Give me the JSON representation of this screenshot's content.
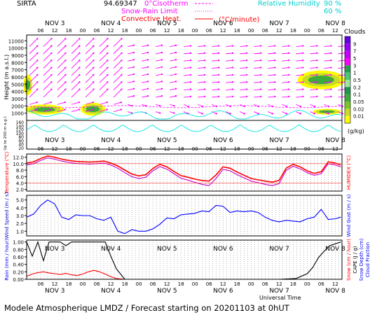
{
  "header": {
    "station": "SIRTA",
    "coords": "94.69347",
    "legend_isotherm": "0°Cisotherm",
    "legend_snow_rain": "Snow-Rain Limit",
    "legend_convective": "Convective Heat.",
    "legend_convective_unit": "(°C/minute)",
    "legend_rh": "Relative Humidity",
    "rh_90": "90 %",
    "rh_60": "60 %"
  },
  "day_labels": [
    "NOV 3",
    "NOV 4",
    "NOV 5",
    "NOV 6",
    "NOV 7",
    "NOV 8"
  ],
  "hour_labels": [
    "06",
    "12",
    "18",
    "00"
  ],
  "footer": {
    "title": "Modele Atmospherique LMDZ / Forecast starting on 20201103 at 0hUT",
    "xaxis": "Universal Time"
  },
  "colors": {
    "cloud_scale": [
      "#ffff00",
      "#c8dc28",
      "#78c828",
      "#3caa3c",
      "#1e9650",
      "#a0e6a0",
      "#50c878",
      "#28a050",
      "#ff00ff",
      "#c800ff",
      "#9600ff",
      "#6400e6"
    ],
    "temperature": "#ff0000",
    "humidex": "#c800c8",
    "wind": "#0000ff",
    "wind_axis": "#0000cc",
    "rain": "#ff0000",
    "snow": "#0000ff",
    "cloud_frac": "#000000",
    "rh_contour": "#00e6e6",
    "wind_arrows": "#ff00ff"
  },
  "chart_data": [
    {
      "type": "heatmap",
      "panel": "clouds",
      "ylabel": "Height (m a.s.l.)",
      "ylabel2": "Up to 200 m a.g.l.",
      "yticks_upper": [
        11000,
        10000,
        9000,
        8000,
        7000,
        6000,
        5000,
        4000,
        3000,
        2000,
        1000
      ],
      "yticks_lower": [
        160,
        140,
        120,
        100,
        80,
        60,
        40,
        20
      ],
      "colorbar_title": "Clouds",
      "colorbar_labels": [
        "9",
        "7",
        "5",
        "3",
        "1",
        "0.5",
        "0.2",
        "0.1",
        "0.05",
        "0.02",
        "0.01"
      ],
      "colorbar_unit": "(g/kg)",
      "cloud_patches": [
        {
          "day": 3.05,
          "height_m": 5000,
          "level": "high"
        },
        {
          "day": 3.3,
          "height_m": 1500,
          "level": "high"
        },
        {
          "day": 4.2,
          "height_m": 1600,
          "level": "high"
        },
        {
          "day": 8.2,
          "height_m": 5500,
          "level": "high"
        }
      ]
    },
    {
      "type": "line",
      "panel": "temperature",
      "ylabel": "Temperature (°C)",
      "ylabel2": "HUMIDEX (°C)",
      "yticks": [
        12.0,
        10.0,
        8.0,
        6.0,
        4.0,
        2.0
      ],
      "ylim": [
        1.5,
        13
      ],
      "series": [
        {
          "name": "Temperature",
          "x": [
            3.0,
            3.125,
            3.25,
            3.375,
            3.5,
            3.625,
            3.75,
            3.875,
            4.0,
            4.125,
            4.25,
            4.375,
            4.5,
            4.625,
            4.75,
            4.875,
            5.0,
            5.125,
            5.25,
            5.375,
            5.5,
            5.625,
            5.75,
            5.875,
            6.0,
            6.125,
            6.25,
            6.375,
            6.5,
            6.625,
            6.75,
            6.875,
            7.0,
            7.125,
            7.25,
            7.375,
            7.5,
            7.625,
            7.75,
            7.875,
            8.0,
            8.125,
            8.25,
            8.375,
            8.5,
            8.6
          ],
          "values": [
            10.2,
            10.6,
            11.6,
            12.4,
            12.0,
            11.4,
            11.0,
            10.7,
            10.6,
            10.5,
            10.6,
            10.8,
            10.2,
            9.3,
            8.0,
            6.8,
            6.2,
            6.6,
            8.5,
            9.8,
            9.0,
            7.6,
            6.3,
            5.8,
            5.2,
            4.8,
            4.6,
            6.5,
            9.0,
            8.6,
            7.4,
            6.4,
            5.4,
            5.0,
            4.6,
            4.3,
            4.8,
            8.6,
            9.8,
            9.0,
            7.8,
            7.0,
            7.5,
            10.6,
            10.2,
            9.6
          ]
        },
        {
          "name": "Humidex",
          "x": [
            3.0,
            3.125,
            3.25,
            3.375,
            3.5,
            3.625,
            3.75,
            3.875,
            4.0,
            4.125,
            4.25,
            4.375,
            4.5,
            4.625,
            4.75,
            4.875,
            5.0,
            5.125,
            5.25,
            5.375,
            5.5,
            5.625,
            5.75,
            5.875,
            6.0,
            6.125,
            6.25,
            6.375,
            6.5,
            6.625,
            6.75,
            6.875,
            7.0,
            7.125,
            7.25,
            7.375,
            7.5,
            7.625,
            7.75,
            7.875,
            8.0,
            8.125,
            8.25,
            8.375,
            8.5,
            8.6
          ],
          "values": [
            9.6,
            10.0,
            11.0,
            11.8,
            11.4,
            10.8,
            10.4,
            10.1,
            10.0,
            9.9,
            10.0,
            10.2,
            9.6,
            8.6,
            7.2,
            6.0,
            5.4,
            5.8,
            7.8,
            9.1,
            8.3,
            6.9,
            5.5,
            4.9,
            4.2,
            3.6,
            3.2,
            5.4,
            8.2,
            7.8,
            6.6,
            5.6,
            4.6,
            4.1,
            3.6,
            3.2,
            3.8,
            7.9,
            9.2,
            8.4,
            7.2,
            6.4,
            6.9,
            10.0,
            9.6,
            9.0
          ]
        }
      ]
    },
    {
      "type": "line",
      "panel": "wind",
      "ylabel": "Wind Speed (m / s)",
      "ylabel2": "Wind Gust (m / s)",
      "yticks": [
        5.0,
        4.0,
        3.0,
        2.0,
        1.0
      ],
      "ylim": [
        0.4,
        5.6
      ],
      "series": [
        {
          "name": "Wind Speed",
          "x": [
            3.0,
            3.125,
            3.25,
            3.375,
            3.5,
            3.625,
            3.75,
            3.875,
            4.0,
            4.125,
            4.25,
            4.375,
            4.5,
            4.625,
            4.75,
            4.875,
            5.0,
            5.125,
            5.25,
            5.375,
            5.5,
            5.625,
            5.75,
            5.875,
            6.0,
            6.125,
            6.25,
            6.375,
            6.5,
            6.625,
            6.75,
            6.875,
            7.0,
            7.125,
            7.25,
            7.375,
            7.5,
            7.625,
            7.75,
            7.875,
            8.0,
            8.125,
            8.25,
            8.375,
            8.5,
            8.6
          ],
          "values": [
            2.8,
            3.2,
            4.3,
            5.0,
            4.5,
            2.8,
            2.5,
            3.1,
            3.0,
            3.0,
            2.6,
            2.4,
            2.8,
            1.0,
            0.7,
            1.2,
            1.0,
            1.0,
            1.3,
            1.9,
            2.7,
            2.6,
            3.1,
            3.2,
            3.3,
            3.6,
            3.5,
            4.3,
            4.2,
            3.4,
            3.6,
            3.5,
            3.6,
            3.4,
            2.8,
            2.4,
            2.2,
            2.4,
            2.3,
            2.2,
            2.6,
            2.8,
            3.8,
            2.5,
            2.6,
            2.8
          ]
        }
      ]
    },
    {
      "type": "line",
      "panel": "precipitation",
      "ylabel": "Rain (mm / hour)",
      "ylabel2": "Snow (cm / hour)",
      "ylabel3": "CAPE (J / g)",
      "ylabel4": "Snow Depth (cm)",
      "ylabel5": "Cloud Fraction",
      "yticks": [
        1.0,
        0.8,
        0.6,
        0.4,
        0.2,
        0.0
      ],
      "ylim": [
        0,
        1.05
      ],
      "series": [
        {
          "name": "Rain",
          "x": [
            3.0,
            3.1,
            3.2,
            3.3,
            3.4,
            3.5,
            3.6,
            3.7,
            3.8,
            3.9,
            4.0,
            4.1,
            4.2,
            4.3,
            4.4,
            4.5,
            4.6,
            4.75,
            5.0,
            5.5,
            6.0,
            6.5,
            7.0,
            7.5,
            8.0,
            8.3,
            8.6
          ],
          "values": [
            0.08,
            0.14,
            0.18,
            0.2,
            0.17,
            0.15,
            0.13,
            0.16,
            0.12,
            0.1,
            0.14,
            0.2,
            0.24,
            0.2,
            0.14,
            0.07,
            0.02,
            0.0,
            0.0,
            0.0,
            0.0,
            0.0,
            0.0,
            0.0,
            0.0,
            0.0,
            0.0
          ]
        },
        {
          "name": "Cloud Fraction",
          "x": [
            3.0,
            3.1,
            3.2,
            3.3,
            3.4,
            3.5,
            3.6,
            3.7,
            3.8,
            3.9,
            4.0,
            4.1,
            4.2,
            4.3,
            4.4,
            4.5,
            4.6,
            4.75,
            5.0,
            5.5,
            6.0,
            6.5,
            7.0,
            7.5,
            7.8,
            8.0,
            8.1,
            8.2,
            8.3,
            8.4,
            8.6
          ],
          "values": [
            1.0,
            0.62,
            1.0,
            0.5,
            1.0,
            1.0,
            1.0,
            0.9,
            1.0,
            1.0,
            1.0,
            1.0,
            1.0,
            1.0,
            1.0,
            0.62,
            0.28,
            0.0,
            0.0,
            0.0,
            0.0,
            0.0,
            0.0,
            0.0,
            0.02,
            0.15,
            0.32,
            0.58,
            0.75,
            0.9,
            1.0
          ]
        }
      ]
    }
  ]
}
